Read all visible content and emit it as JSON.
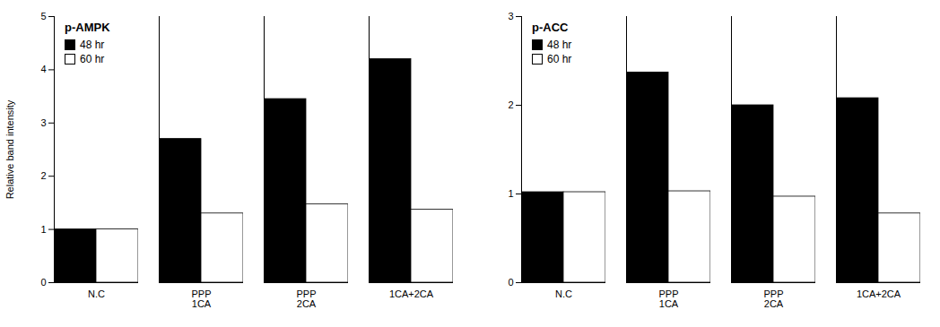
{
  "chart_data": [
    {
      "type": "bar",
      "title": "p-AMPK",
      "categories": [
        "N.C",
        "PPP\n1CA",
        "PPP\n2CA",
        "1CA+2CA"
      ],
      "series": [
        {
          "name": "48 hr",
          "color": "#000000",
          "values": [
            1.0,
            2.7,
            3.45,
            4.2
          ]
        },
        {
          "name": "60 hr",
          "color": "#ffffff",
          "values": [
            1.0,
            1.3,
            1.47,
            1.37
          ]
        }
      ],
      "ylabel": "Relative band intensity",
      "ylim": [
        0,
        5.0
      ],
      "yticks": [
        0,
        1,
        2,
        3,
        4,
        5
      ],
      "legend": "upper left"
    },
    {
      "type": "bar",
      "title": "p-ACC",
      "categories": [
        "N.C",
        "PPP\n1CA",
        "PPP\n2CA",
        "1CA+2CA"
      ],
      "series": [
        {
          "name": "48 hr",
          "color": "#000000",
          "values": [
            1.02,
            2.37,
            2.0,
            2.08
          ]
        },
        {
          "name": "60 hr",
          "color": "#ffffff",
          "values": [
            1.02,
            1.03,
            0.97,
            0.78
          ]
        }
      ],
      "ylim": [
        0,
        3.0
      ],
      "yticks": [
        0,
        1,
        2,
        3
      ],
      "legend": "upper left"
    }
  ]
}
